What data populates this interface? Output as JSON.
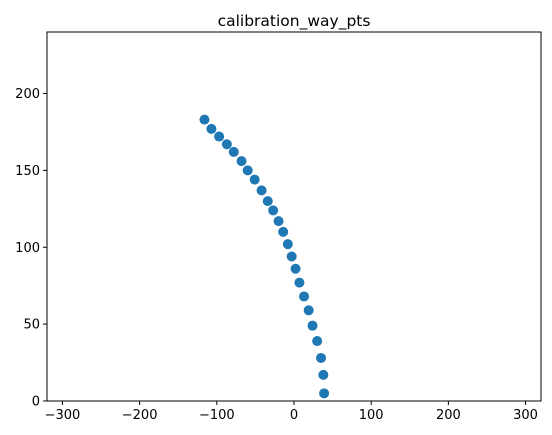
{
  "chart_data": {
    "type": "scatter",
    "title": "calibration_way_pts",
    "xlabel": "",
    "ylabel": "",
    "xlim": [
      -320,
      320
    ],
    "ylim": [
      0,
      240
    ],
    "xticks": [
      -300,
      -200,
      -100,
      0,
      100,
      200,
      300
    ],
    "yticks": [
      0,
      50,
      100,
      150,
      200
    ],
    "xtick_labels": [
      "−300",
      "−200",
      "−100",
      "0",
      "100",
      "200",
      "300"
    ],
    "ytick_labels": [
      "0",
      "50",
      "100",
      "150",
      "200"
    ],
    "grid": false,
    "legend": "none",
    "marker_color": "#1f77b4",
    "series": [
      {
        "x": [
          -116,
          -107,
          -97,
          -87,
          -78,
          -68,
          -60,
          -51,
          -42,
          -34,
          -27,
          -20,
          -14,
          -8,
          -3,
          2,
          7,
          13,
          19,
          24,
          30,
          35,
          38
        ],
        "y": [
          183,
          177,
          172,
          167,
          162,
          156,
          150,
          144,
          137,
          130,
          124,
          117,
          110,
          102,
          94,
          86,
          77,
          68,
          59,
          49,
          39,
          28,
          17
        ]
      }
    ],
    "extra_points": [
      {
        "x": 39,
        "y": 5
      }
    ]
  }
}
